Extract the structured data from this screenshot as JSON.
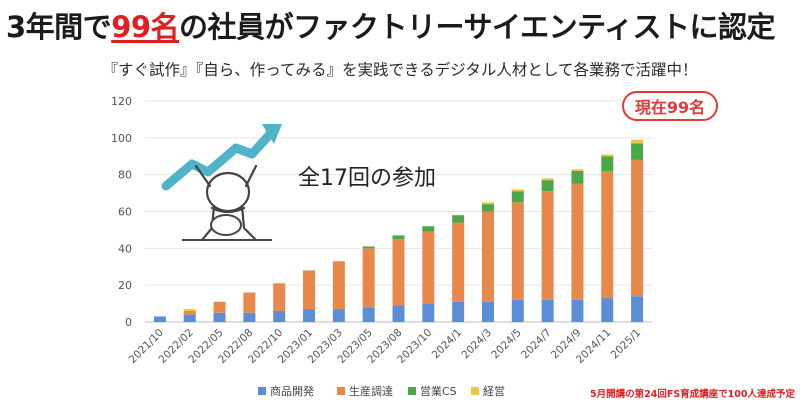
{
  "header": {
    "title_pre": "3年間で",
    "title_highlight": "99名",
    "title_post": "の社員がファクトリーサイエンティストに認定",
    "subtitle": "『すぐ試作』『自ら、作ってみる』を実践できるデジタル人材として各業務で活躍中！"
  },
  "badge": {
    "label": "現在99名"
  },
  "footnote": "5月開講の第24回FS育成講座で100人達成予定",
  "colors": {
    "accent_red": "#e02020",
    "series": [
      "#5b8ed6",
      "#e8884a",
      "#4aa84a",
      "#f5c242"
    ],
    "arrow": "#4fb3c9"
  },
  "illustration": {
    "name": "person-raising-arms-with-rising-arrow"
  },
  "chart_data": {
    "type": "bar",
    "stacked": true,
    "annotation": "全17回の参加",
    "categories": [
      "2021/10",
      "2022/02",
      "2022/05",
      "2022/08",
      "2022/10",
      "2023/01",
      "2023/03",
      "2023/05",
      "2023/08",
      "2023/10",
      "2024/1",
      "2024/3",
      "2024/5",
      "2024/7",
      "2024/9",
      "2024/11",
      "2025/1"
    ],
    "series": [
      {
        "name": "商品開発",
        "values": [
          3,
          4,
          5,
          5,
          6,
          7,
          7,
          8,
          9,
          10,
          11,
          11,
          12,
          12,
          12,
          13,
          14
        ]
      },
      {
        "name": "生産調達",
        "values": [
          0,
          2,
          6,
          11,
          15,
          21,
          26,
          32,
          36,
          39,
          43,
          49,
          53,
          59,
          63,
          69,
          74
        ]
      },
      {
        "name": "営業CS",
        "values": [
          0,
          0,
          0,
          0,
          0,
          0,
          0,
          1,
          2,
          3,
          4,
          4,
          6,
          6,
          7,
          8,
          9
        ]
      },
      {
        "name": "経営",
        "values": [
          0,
          1,
          0,
          0,
          0,
          0,
          0,
          0,
          0,
          0,
          0,
          1,
          1,
          1,
          1,
          1,
          2
        ]
      }
    ],
    "ylim": [
      0,
      120
    ],
    "yticks": [
      0,
      20,
      40,
      60,
      80,
      100,
      120
    ],
    "grid": true,
    "legend": "bottom"
  }
}
